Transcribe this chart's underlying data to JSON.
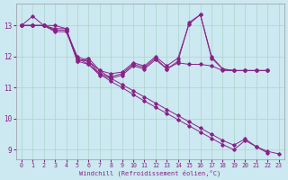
{
  "xlabel": "Windchill (Refroidissement éolien,°C)",
  "background_color": "#cce8f0",
  "grid_color": "#aad4cc",
  "line_color": "#882288",
  "xlim": [
    -0.5,
    23.5
  ],
  "ylim": [
    8.7,
    13.7
  ],
  "yticks": [
    9,
    10,
    11,
    12,
    13
  ],
  "xticks": [
    0,
    1,
    2,
    3,
    4,
    5,
    6,
    7,
    8,
    9,
    10,
    11,
    12,
    13,
    14,
    15,
    16,
    17,
    18,
    19,
    20,
    21,
    22,
    23
  ],
  "series": [
    {
      "x": [
        0,
        1,
        2,
        3,
        4,
        5,
        6,
        7,
        8,
        9,
        10,
        11,
        12,
        13,
        14,
        15,
        16,
        17,
        18,
        19,
        20,
        21,
        22
      ],
      "y": [
        13.0,
        13.3,
        13.0,
        13.0,
        12.9,
        11.85,
        11.95,
        11.55,
        11.45,
        11.5,
        11.8,
        11.7,
        12.0,
        11.7,
        11.95,
        13.05,
        13.35,
        11.95,
        11.6,
        11.55,
        11.55,
        11.55,
        11.55
      ]
    },
    {
      "x": [
        0,
        1,
        2,
        3,
        4,
        5,
        6,
        7,
        8,
        9,
        10,
        11,
        12,
        13,
        14,
        15,
        16,
        17,
        18,
        19,
        20,
        21,
        22
      ],
      "y": [
        13.0,
        13.0,
        13.0,
        12.85,
        12.85,
        12.0,
        11.85,
        11.55,
        11.3,
        11.1,
        10.9,
        10.7,
        10.5,
        10.3,
        10.1,
        9.9,
        9.7,
        9.5,
        9.3,
        9.15,
        9.35,
        9.1,
        8.9
      ]
    },
    {
      "x": [
        0,
        1,
        2,
        3,
        4,
        5,
        6,
        7,
        8,
        9,
        10,
        11,
        12,
        13,
        14,
        15,
        16,
        17,
        18,
        19,
        20,
        21,
        22,
        23
      ],
      "y": [
        13.0,
        13.0,
        13.0,
        12.8,
        12.8,
        11.95,
        11.75,
        11.45,
        11.2,
        11.0,
        10.78,
        10.57,
        10.37,
        10.17,
        9.97,
        9.77,
        9.57,
        9.37,
        9.17,
        9.0,
        9.3,
        9.1,
        8.95,
        8.87
      ]
    },
    {
      "x": [
        0,
        1,
        2,
        3,
        4,
        5,
        6,
        7,
        8,
        9,
        10,
        11,
        12,
        13,
        14,
        15,
        16,
        17,
        18,
        19,
        20,
        21,
        22
      ],
      "y": [
        13.0,
        13.0,
        13.0,
        12.9,
        12.9,
        11.9,
        11.85,
        11.45,
        11.35,
        11.45,
        11.75,
        11.65,
        11.95,
        11.6,
        11.85,
        13.1,
        13.35,
        12.0,
        11.6,
        11.55,
        11.55,
        11.55,
        11.55
      ]
    },
    {
      "x": [
        0,
        1,
        2,
        3,
        4,
        5,
        6,
        7,
        8,
        9,
        10,
        11,
        12,
        13,
        14,
        15,
        16,
        17,
        18,
        19,
        20,
        21,
        22
      ],
      "y": [
        13.0,
        13.0,
        13.0,
        12.85,
        12.85,
        11.85,
        11.75,
        11.4,
        11.3,
        11.4,
        11.7,
        11.6,
        11.9,
        11.6,
        11.8,
        11.75,
        11.75,
        11.7,
        11.55,
        11.55,
        11.55,
        11.55,
        11.55
      ]
    }
  ]
}
